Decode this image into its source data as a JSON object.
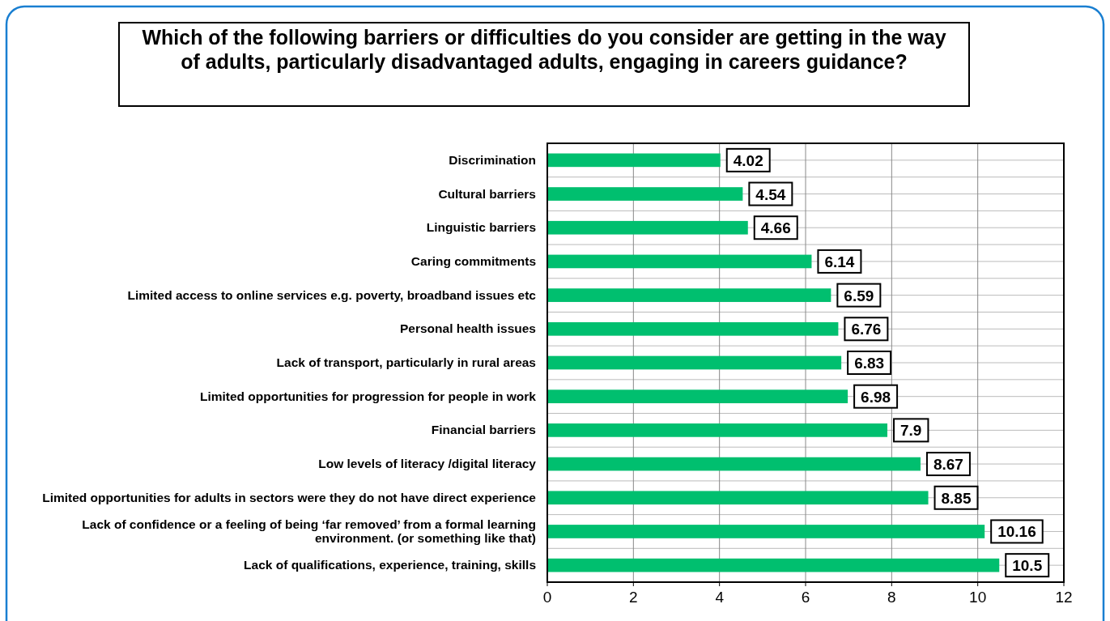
{
  "chart_data": {
    "type": "bar",
    "orientation": "horizontal",
    "title": "Which of the following barriers or difficulties do you consider are getting in the way of adults, particularly disadvantaged adults, engaging in careers guidance?",
    "categories": [
      "Discrimination",
      "Cultural barriers",
      "Linguistic barriers",
      "Caring commitments",
      "Limited access to online services e.g. poverty, broadband issues etc",
      "Personal health issues",
      "Lack of transport, particularly in rural areas",
      "Limited opportunities for progression for people in work",
      "Financial barriers",
      "Low levels of literacy /digital literacy",
      "Limited opportunities for adults in sectors were they do not have direct experience",
      "Lack of confidence or a feeling of being ‘far removed’ from a formal learning environment. (or something like that)",
      "Lack of qualifications, experience, training, skills"
    ],
    "values": [
      4.02,
      4.54,
      4.66,
      6.14,
      6.59,
      6.76,
      6.83,
      6.98,
      7.9,
      8.67,
      8.85,
      10.16,
      10.5
    ],
    "color": "#00bf6f",
    "xlim": [
      0,
      12
    ],
    "xticks": [
      0,
      2,
      4,
      6,
      8,
      10,
      12
    ],
    "grid": true,
    "data_labels": true
  }
}
